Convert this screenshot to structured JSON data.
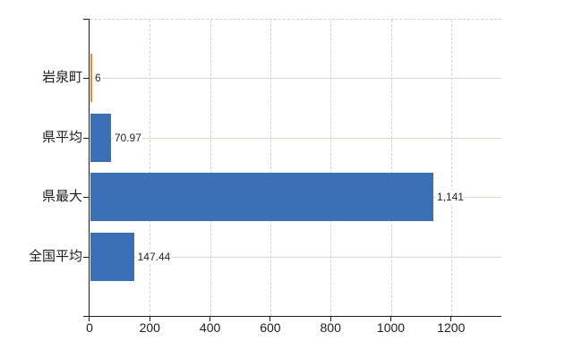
{
  "chart_data": {
    "type": "bar",
    "orientation": "horizontal",
    "title": "",
    "categories": [
      "岩泉町",
      "県平均",
      "県最大",
      "全国平均"
    ],
    "values": [
      6,
      70.97,
      1141,
      147.44
    ],
    "value_labels": [
      "6",
      "70.97",
      "1,141",
      "147.44"
    ],
    "bar_colors": [
      "#ec8b2e",
      "#3c70b6",
      "#3c70b6",
      "#3c70b6"
    ],
    "x_ticks": [
      {
        "value": 0,
        "label": "0"
      },
      {
        "value": 200,
        "label": "200"
      },
      {
        "value": 400,
        "label": "400"
      },
      {
        "value": 600,
        "label": "600"
      },
      {
        "value": 800,
        "label": "800"
      },
      {
        "value": 1000,
        "label": "1000"
      },
      {
        "value": 1200,
        "label": "1200"
      }
    ],
    "xlim": [
      0,
      1367
    ],
    "legend": "none",
    "grid": {
      "vertical_lines": "dashed",
      "horizontal_lines": "solid",
      "plot_top_border": "dashed"
    }
  },
  "colors": {
    "background": "#ffffff",
    "bar_blue": "#3c70b6",
    "bar_orange": "#ec8b2e",
    "grid_dashed": "#d5ced5",
    "grid_solid": "#d3dbd3",
    "axis": "#1c1c1c",
    "value_text": "#262626"
  }
}
